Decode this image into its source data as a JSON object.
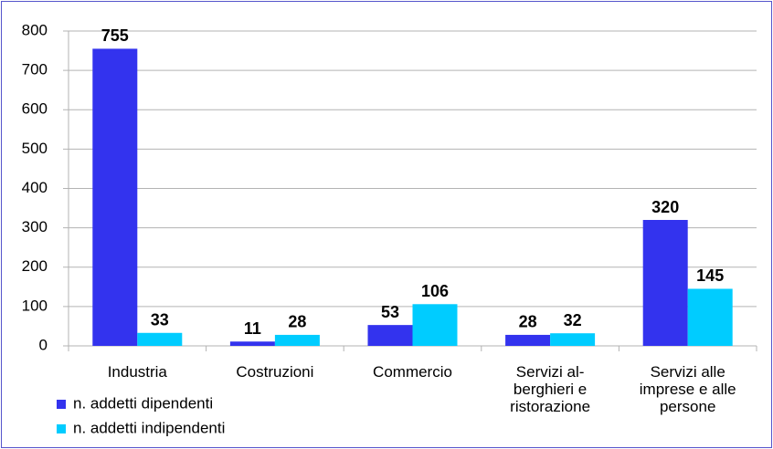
{
  "chart_data": {
    "type": "bar",
    "categories": [
      "Industria",
      "Costruzioni",
      "Commercio",
      "Servizi al-berghieri e ristorazione",
      "Servizi alle imprese e alle persone"
    ],
    "series": [
      {
        "name": "n. addetti dipendenti",
        "color": "#3333ee",
        "values": [
          755,
          11,
          53,
          28,
          320
        ]
      },
      {
        "name": "n. addetti indipendenti",
        "color": "#00ccff",
        "values": [
          33,
          28,
          106,
          32,
          145
        ]
      }
    ],
    "ylim": [
      0,
      800
    ],
    "yticks": [
      0,
      100,
      200,
      300,
      400,
      500,
      600,
      700,
      800
    ],
    "grid": true,
    "legend": "bottom-left"
  }
}
